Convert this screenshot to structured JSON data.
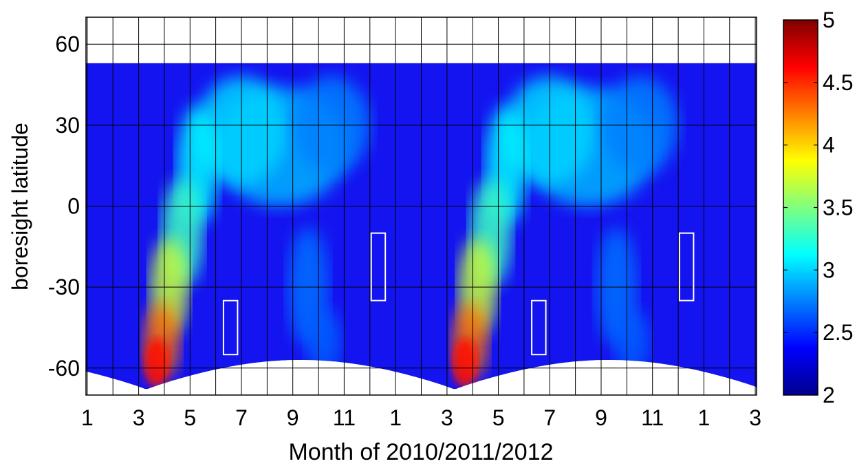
{
  "chart_data": {
    "type": "heatmap",
    "title": "",
    "xlabel": "Month of 2010/2011/2012",
    "ylabel": "boresight latitude",
    "x_tick_labels": [
      "1",
      "3",
      "5",
      "7",
      "9",
      "11",
      "1",
      "3",
      "5",
      "7",
      "9",
      "11",
      "1",
      "3"
    ],
    "x_tick_months": [
      1,
      3,
      5,
      7,
      9,
      11,
      13,
      15,
      17,
      19,
      21,
      23,
      25,
      27
    ],
    "xlim": [
      0.95,
      27.05
    ],
    "y_ticks": [
      60,
      30,
      0,
      -30,
      -60
    ],
    "y_tick_labels": [
      "60",
      "30",
      "0",
      "-30",
      "-60"
    ],
    "ylim": [
      -70,
      70
    ],
    "grid": true,
    "colorbar": {
      "ticks": [
        5,
        4.5,
        4,
        3.5,
        3,
        2.5,
        2
      ],
      "tick_labels": [
        "5",
        "4.5",
        "4",
        "3.5",
        "3",
        "2.5",
        "2"
      ],
      "range": [
        2,
        5
      ],
      "colormap": "jet"
    },
    "data_extent": {
      "north_edge_deg": 53,
      "south_edge_min_deg": -68,
      "south_edge_max_deg": -57
    },
    "features": [
      {
        "name": "peak-2010",
        "month": 3.8,
        "latitude": -55,
        "value": 4.5
      },
      {
        "name": "peak-2011",
        "month": 15.8,
        "latitude": -55,
        "value": 4.5
      }
    ],
    "annotation_boxes": [
      {
        "month_start": 6.3,
        "month_end": 6.85,
        "lat_bottom": -55,
        "lat_top": -35
      },
      {
        "month_start": 12.05,
        "month_end": 12.6,
        "lat_bottom": -35,
        "lat_top": -10
      },
      {
        "month_start": 18.3,
        "month_end": 18.85,
        "lat_bottom": -55,
        "lat_top": -35
      },
      {
        "month_start": 24.05,
        "month_end": 24.6,
        "lat_bottom": -35,
        "lat_top": -10
      }
    ]
  },
  "colors": {
    "box_stroke": "#ffffff",
    "grid": "#000000",
    "background_field": "#1414f0"
  }
}
